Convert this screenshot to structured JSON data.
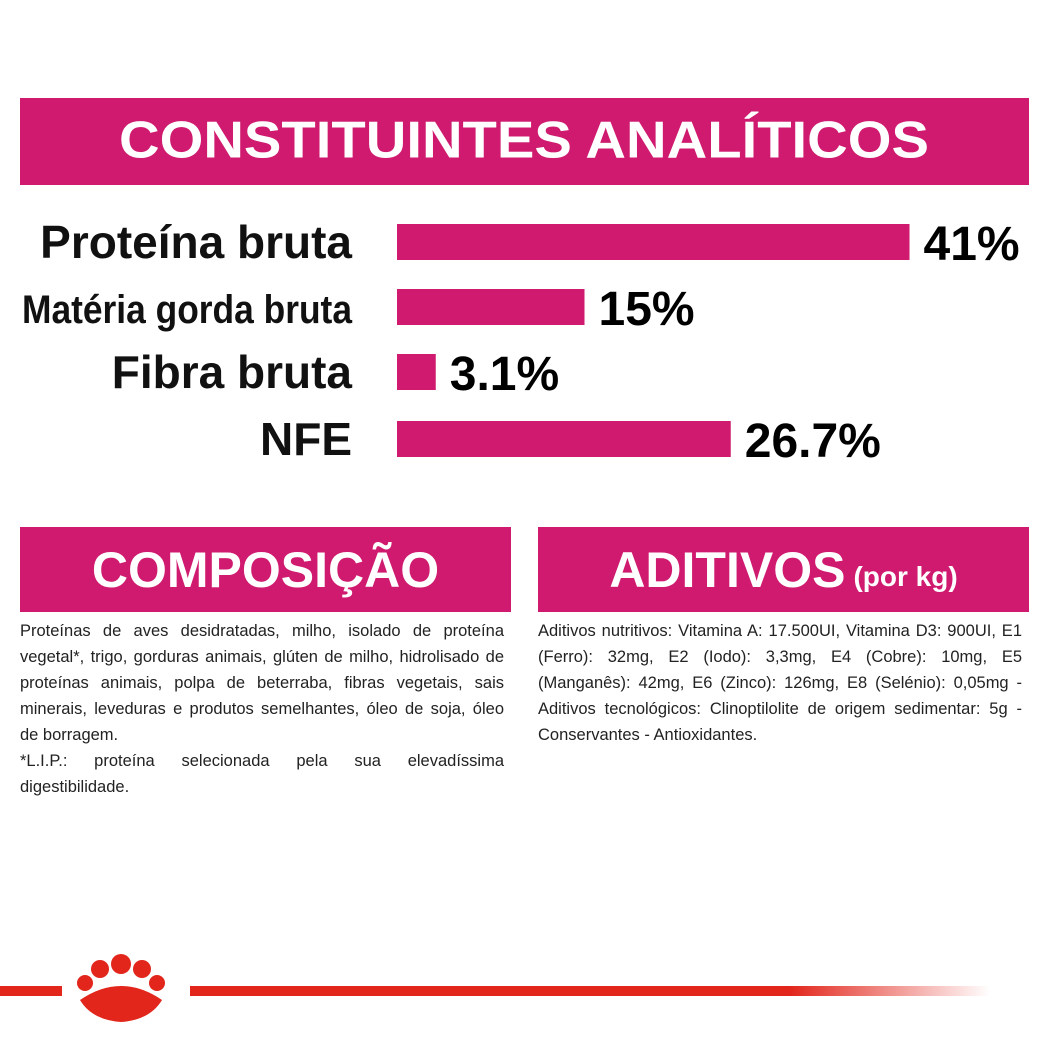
{
  "chart_data": {
    "type": "bar",
    "title": "CONSTITUINTES ANALÍTICOS",
    "categories": [
      "Proteína bruta",
      "Matéria gorda bruta",
      "Fibra bruta",
      "NFE"
    ],
    "values": [
      41,
      15,
      3.1,
      26.7
    ],
    "value_labels": [
      "41%",
      "15%",
      "3.1%",
      "26.7%"
    ],
    "color": "#cf1a6f",
    "orientation": "horizontal"
  },
  "sections": [
    {
      "title": "COMPOSIÇÃO",
      "paragraphs": [
        "Proteínas de aves desidratadas, milho, isolado de proteína vegetal*, trigo, gorduras animais, glúten de milho, hidrolisado de proteínas animais, polpa de beterraba, fibras vegetais, sais minerais, leveduras e produtos semelhantes, óleo de soja, óleo de borragem.",
        "*L.I.P.: proteína selecionada pela sua elevadíssima digestibilidade."
      ]
    },
    {
      "title": "ADITIVOS",
      "subtitle": "(por kg)",
      "paragraphs": [
        "Aditivos nutritivos: Vitamina A: 17.500UI, Vitamina D3: 900UI, E1 (Ferro): 32mg, E2 (Iodo): 3,3mg, E4 (Cobre): 10mg, E5 (Manganês): 42mg, E6 (Zinco): 126mg, E8 (Selénio): 0,05mg - Aditivos tecnológicos: Clinoptilolite de origem sedimentar: 5g - Conservantes - Antioxidantes."
      ]
    }
  ]
}
